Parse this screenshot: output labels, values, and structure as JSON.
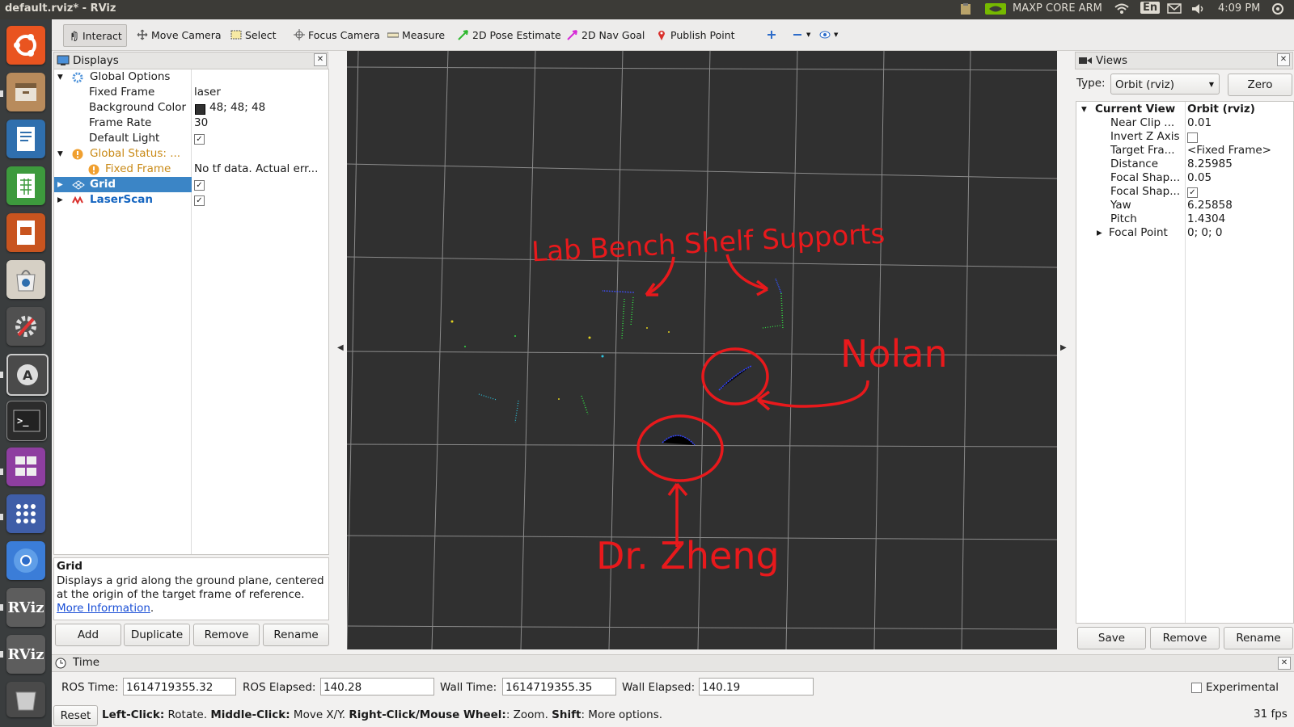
{
  "window_title": "default.rviz* - RViz",
  "top_indicators": {
    "nvidia": "MAXP CORE ARM",
    "lang": "En",
    "time": "4:09 PM"
  },
  "launcher": [
    "ubuntu-icon",
    "files-icon",
    "writer-icon",
    "calc-icon",
    "impress-icon",
    "software-center-icon",
    "settings-icon",
    "software-updater-icon",
    "terminal-icon",
    "workspace-switcher-icon",
    "apps-grid-icon",
    "chromium-icon",
    "rviz-icon",
    "rviz-icon",
    "trash-icon"
  ],
  "toolbar": {
    "interact": "Interact",
    "move_camera": "Move Camera",
    "select": "Select",
    "focus_camera": "Focus Camera",
    "measure": "Measure",
    "pose_estimate": "2D Pose Estimate",
    "nav_goal": "2D Nav Goal",
    "publish_point": "Publish Point"
  },
  "displays": {
    "title": "Displays",
    "global_options": "Global Options",
    "fixed_frame_label": "Fixed Frame",
    "fixed_frame_value": "laser",
    "bg_color_label": "Background Color",
    "bg_color_value": "48; 48; 48",
    "frame_rate_label": "Frame Rate",
    "frame_rate_value": "30",
    "default_light_label": "Default Light",
    "global_status": "Global Status: ...",
    "status_fixed_frame": "Fixed Frame",
    "status_fixed_frame_value": "No tf data.  Actual err...",
    "grid": "Grid",
    "laserscan": "LaserScan",
    "desc_title": "Grid",
    "desc_text": "Displays a grid along the ground plane, centered at the origin of the target frame of reference.",
    "desc_link": "More Information",
    "desc_period": ".",
    "buttons": {
      "add": "Add",
      "duplicate": "Duplicate",
      "remove": "Remove",
      "rename": "Rename"
    }
  },
  "views": {
    "title": "Views",
    "type_label": "Type:",
    "type_value": "Orbit (rviz)",
    "zero": "Zero",
    "current_view": "Current View",
    "current_view_value": "Orbit (rviz)",
    "props": [
      {
        "k": "Near Clip ...",
        "v": "0.01"
      },
      {
        "k": "Invert Z Axis",
        "v": ""
      },
      {
        "k": "Target Fra...",
        "v": "<Fixed Frame>"
      },
      {
        "k": "Distance",
        "v": "8.25985"
      },
      {
        "k": "Focal Shap...",
        "v": "0.05"
      },
      {
        "k": "Focal Shap...",
        "v": ""
      },
      {
        "k": "Yaw",
        "v": "6.25858"
      },
      {
        "k": "Pitch",
        "v": "1.4304"
      },
      {
        "k": "Focal Point",
        "v": "0; 0; 0"
      }
    ],
    "buttons": {
      "save": "Save",
      "remove": "Remove",
      "rename": "Rename"
    }
  },
  "annotations": {
    "shelf": "Lab Bench Shelf Supports",
    "nolan": "Nolan",
    "zheng": "Dr. Zheng"
  },
  "time_panel": {
    "title": "Time",
    "ros_time_label": "ROS Time:",
    "ros_time": "1614719355.32",
    "ros_elapsed_label": "ROS Elapsed:",
    "ros_elapsed": "140.28",
    "wall_time_label": "Wall Time:",
    "wall_time": "1614719355.35",
    "wall_elapsed_label": "Wall Elapsed:",
    "wall_elapsed": "140.19",
    "experimental": "Experimental"
  },
  "status_bar": {
    "reset": "Reset",
    "b1": "Left-Click:",
    "t1": " Rotate. ",
    "b2": "Middle-Click:",
    "t2": " Move X/Y. ",
    "b3": "Right-Click/Mouse Wheel:",
    "t3": ": Zoom. ",
    "b4": "Shift",
    "t4": ": More options.",
    "fps": "31 fps"
  }
}
